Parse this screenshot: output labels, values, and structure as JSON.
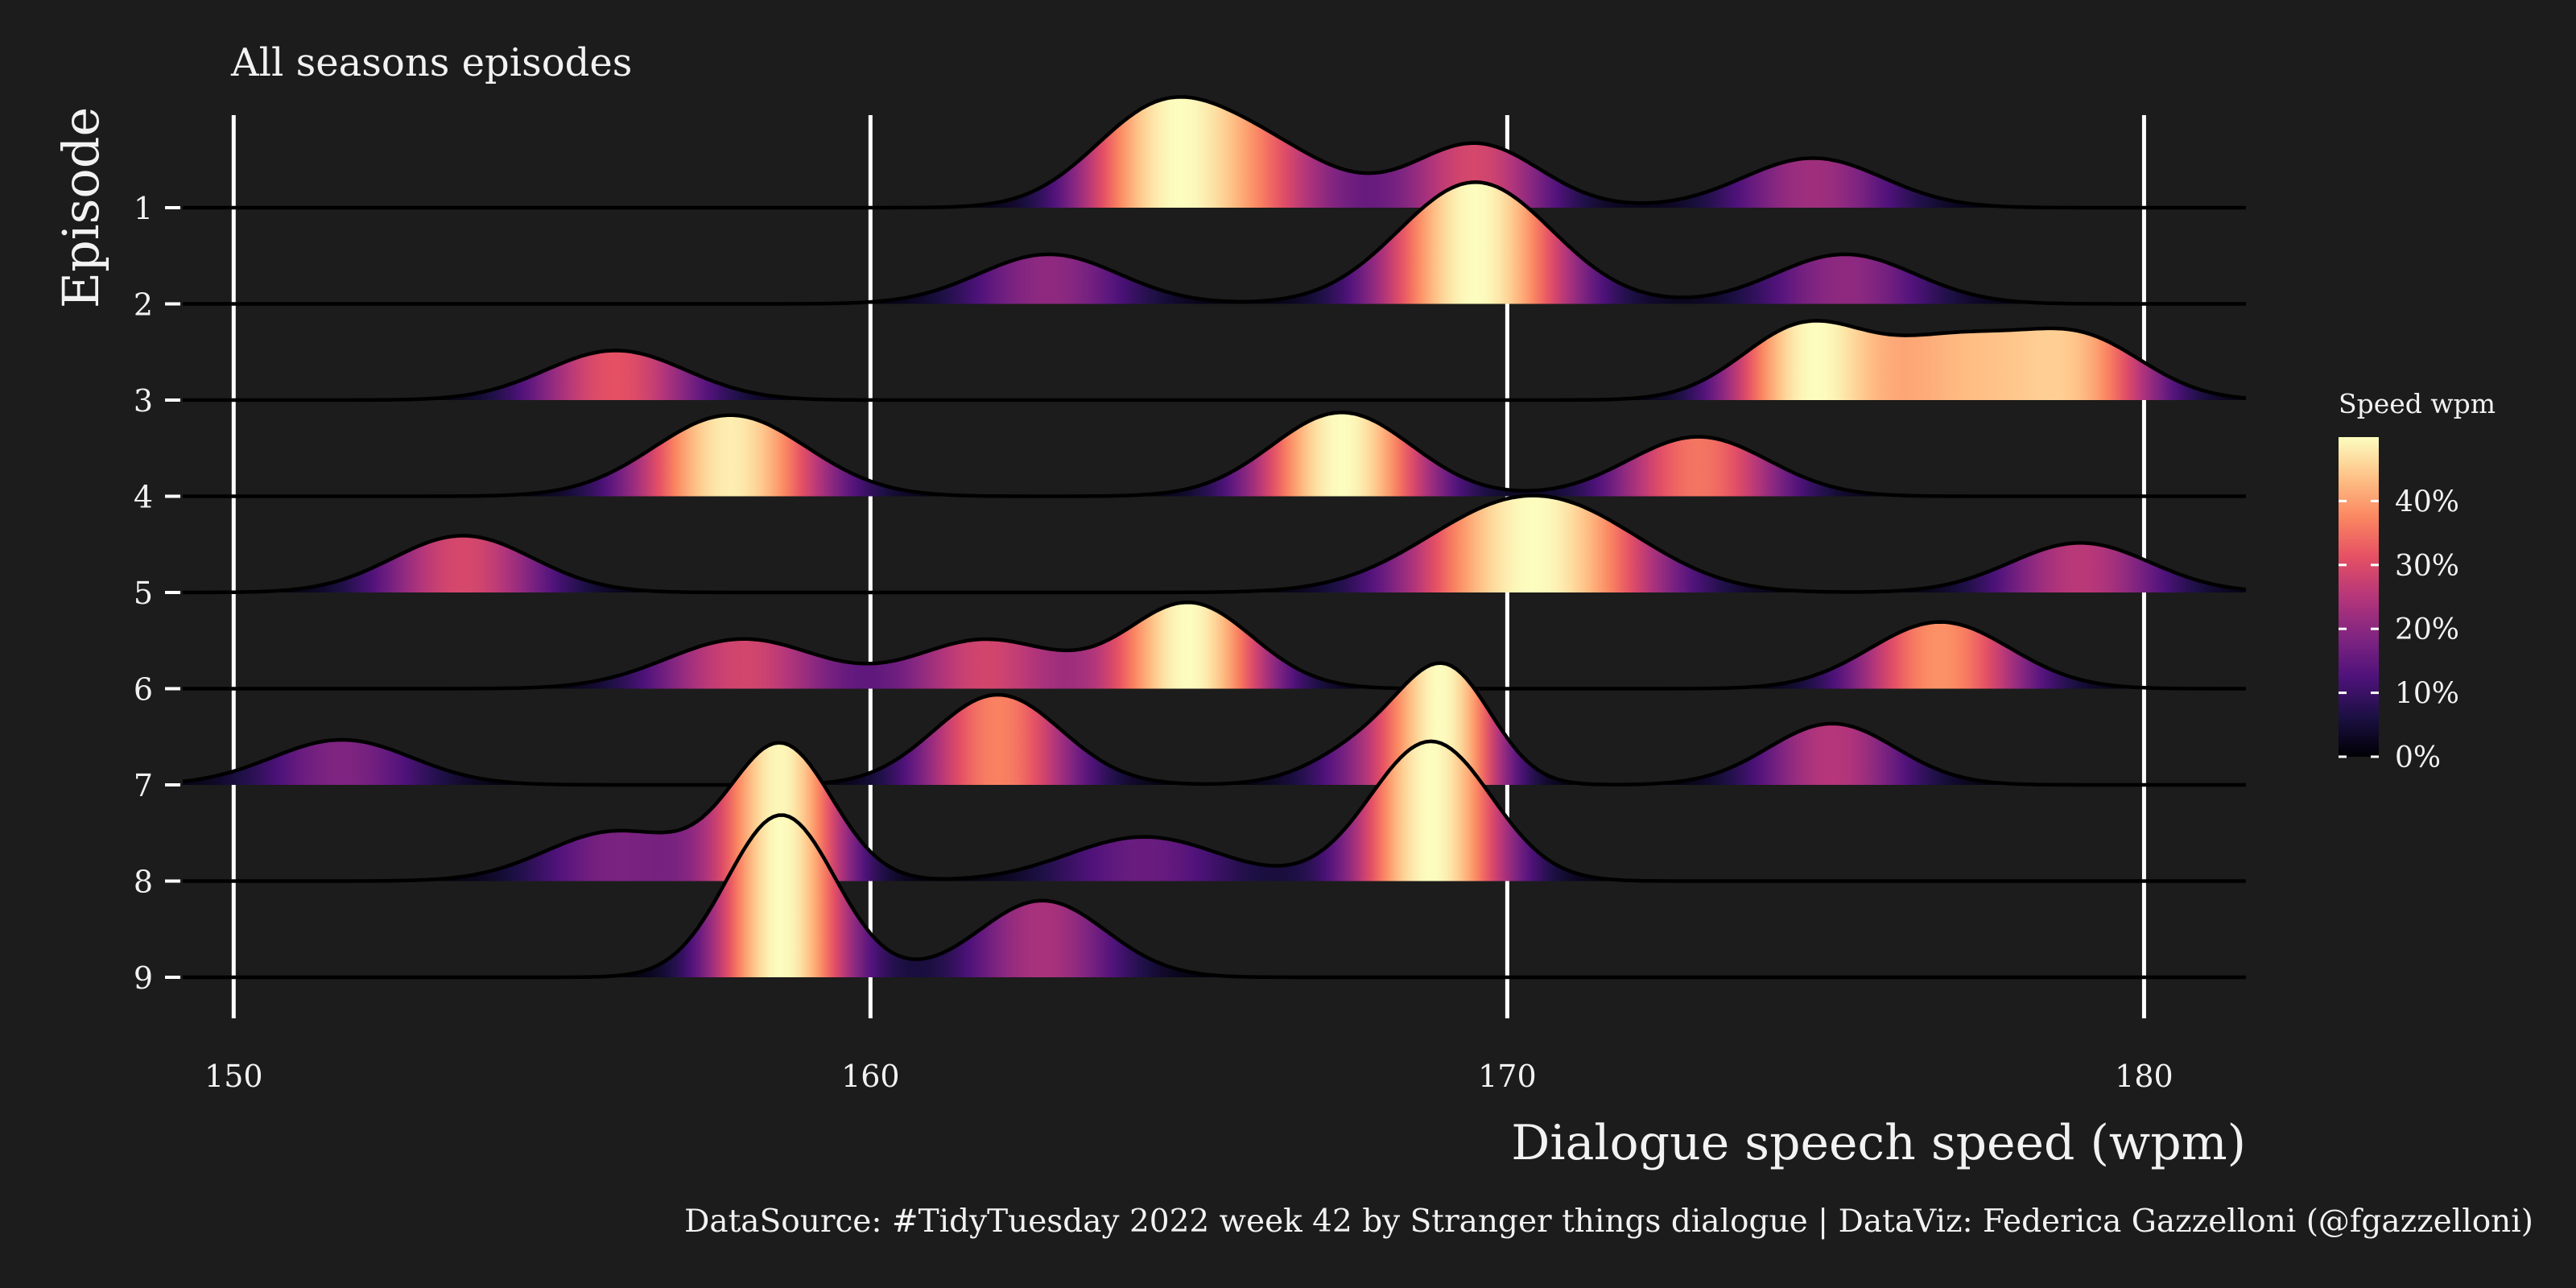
{
  "chart_data": {
    "type": "ridgeline",
    "subtitle": "All seasons episodes",
    "xlabel": "Dialogue speech speed (wpm)",
    "ylabel": "Episode",
    "caption": "DataSource: #TidyTuesday 2022 week 42 by Stranger things dialogue | DataViz: Federica Gazzelloni (@fgazzelloni)",
    "xlim": [
      149.2,
      181.6
    ],
    "x_ticks": [
      150,
      160,
      170,
      180
    ],
    "x_tick_labels": [
      "150",
      "160",
      "170",
      "180"
    ],
    "grid": "vertical-major-only",
    "fill_scale": {
      "title": "Speed wpm",
      "palette": "magma",
      "range": [
        0,
        50
      ],
      "ticks": [
        0,
        10,
        20,
        30,
        40
      ],
      "tick_labels": [
        "0%",
        "10%",
        "20%",
        "30%",
        "40%"
      ],
      "colors": [
        "#000004",
        "#1c1044",
        "#4f127b",
        "#812581",
        "#b5367a",
        "#e55064",
        "#fb8761",
        "#fec287",
        "#fcfdbf"
      ]
    },
    "series": [
      {
        "episode": "1",
        "peaks": [
          {
            "mu": 164.5,
            "sd": 1.05,
            "h": 1.0
          },
          {
            "mu": 166.2,
            "sd": 1.1,
            "h": 0.6
          },
          {
            "mu": 169.5,
            "sd": 1.0,
            "h": 0.71
          },
          {
            "mu": 174.8,
            "sd": 1.1,
            "h": 0.55
          }
        ]
      },
      {
        "episode": "2",
        "peaks": [
          {
            "mu": 162.8,
            "sd": 1.1,
            "h": 0.55
          },
          {
            "mu": 169.5,
            "sd": 1.2,
            "h": 1.35
          },
          {
            "mu": 175.3,
            "sd": 1.1,
            "h": 0.55
          }
        ]
      },
      {
        "episode": "3",
        "peaks": [
          {
            "mu": 156.0,
            "sd": 1.1,
            "h": 0.55
          },
          {
            "mu": 174.7,
            "sd": 1.0,
            "h": 0.83
          },
          {
            "mu": 177.0,
            "sd": 1.0,
            "h": 0.6
          },
          {
            "mu": 179.0,
            "sd": 1.0,
            "h": 0.68
          }
        ]
      },
      {
        "episode": "4",
        "peaks": [
          {
            "mu": 157.8,
            "sd": 1.2,
            "h": 0.9
          },
          {
            "mu": 167.4,
            "sd": 1.1,
            "h": 0.93
          },
          {
            "mu": 173.0,
            "sd": 1.1,
            "h": 0.66
          }
        ]
      },
      {
        "episode": "5",
        "peaks": [
          {
            "mu": 153.6,
            "sd": 1.1,
            "h": 0.63
          },
          {
            "mu": 170.0,
            "sd": 1.4,
            "h": 0.88
          },
          {
            "mu": 171.5,
            "sd": 1.2,
            "h": 0.35
          },
          {
            "mu": 179.0,
            "sd": 1.1,
            "h": 0.55
          }
        ]
      },
      {
        "episode": "6",
        "peaks": [
          {
            "mu": 158.0,
            "sd": 1.2,
            "h": 0.55
          },
          {
            "mu": 161.8,
            "sd": 1.1,
            "h": 0.54
          },
          {
            "mu": 165.0,
            "sd": 1.0,
            "h": 0.95
          },
          {
            "mu": 176.8,
            "sd": 1.1,
            "h": 0.74
          }
        ]
      },
      {
        "episode": "7",
        "peaks": [
          {
            "mu": 151.7,
            "sd": 1.1,
            "h": 0.5
          },
          {
            "mu": 162.0,
            "sd": 1.0,
            "h": 1.0
          },
          {
            "mu": 168.0,
            "sd": 0.9,
            "h": 0.5
          },
          {
            "mu": 169.1,
            "sd": 0.7,
            "h": 1.09
          },
          {
            "mu": 175.1,
            "sd": 1.0,
            "h": 0.68
          }
        ]
      },
      {
        "episode": "8",
        "peaks": [
          {
            "mu": 156.0,
            "sd": 1.1,
            "h": 0.55
          },
          {
            "mu": 158.6,
            "sd": 0.8,
            "h": 1.5
          },
          {
            "mu": 164.3,
            "sd": 1.2,
            "h": 0.49
          },
          {
            "mu": 168.8,
            "sd": 0.95,
            "h": 1.55
          }
        ]
      },
      {
        "episode": "9",
        "peaks": [
          {
            "mu": 158.6,
            "sd": 0.85,
            "h": 1.8
          },
          {
            "mu": 162.7,
            "sd": 1.0,
            "h": 0.85
          }
        ]
      }
    ]
  }
}
